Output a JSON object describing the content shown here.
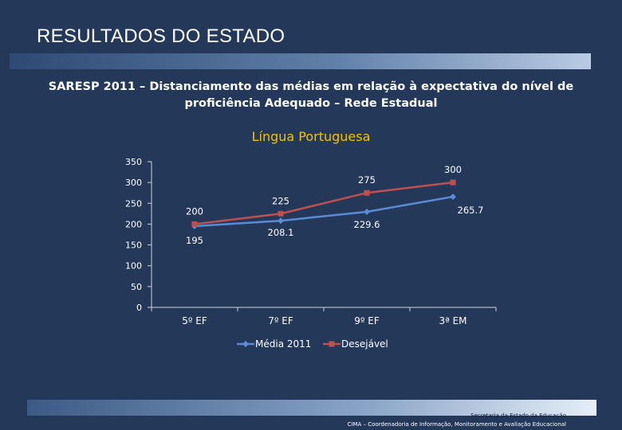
{
  "slide": {
    "title": "RESULTADOS DO ESTADO"
  },
  "chart_title": "SARESP 2011 – Distanciamento das médias em relação à expectativa do nível de proficiência Adequado – Rede Estadual",
  "colors": {
    "background": "#24395a",
    "series_media": "#5b8bd4",
    "series_desejavel": "#c0504d",
    "subtitle": "#f2c200"
  },
  "chart_data": {
    "type": "line",
    "title": "Língua Portuguesa",
    "categories": [
      "5º EF",
      "7º EF",
      "9º EF",
      "3ª EM"
    ],
    "ylim": [
      0,
      350
    ],
    "yticks": [
      0,
      50,
      100,
      150,
      200,
      250,
      300,
      350
    ],
    "grid": false,
    "legend": "bottom",
    "series": [
      {
        "name": "Média 2011",
        "values": [
          195,
          208.1,
          229.6,
          265.7
        ],
        "labels": [
          "195",
          "208.1",
          "229.6",
          "265.7"
        ]
      },
      {
        "name": "Desejável",
        "values": [
          200,
          225,
          275,
          300
        ],
        "labels": [
          "200",
          "225",
          "275",
          "300"
        ]
      }
    ]
  },
  "footer": {
    "line1": "Secretaria da Estado da Educação",
    "line2": "CIMA – Coordenadoria de Informação, Monitoramento e Avaliação Educacional"
  }
}
